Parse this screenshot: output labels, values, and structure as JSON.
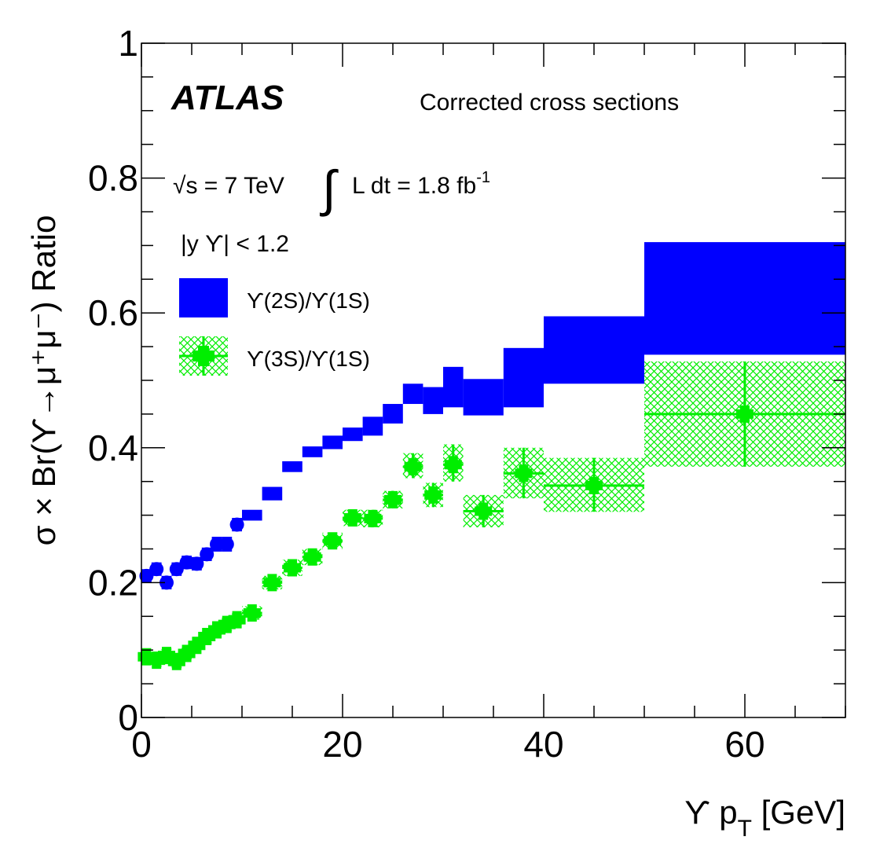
{
  "chart_data": {
    "type": "scatter",
    "experiment": "ATLAS",
    "caption": "Corrected cross sections",
    "energy_label": "√s = 7 TeV",
    "lumi_label": "L dt = 1.8 fb",
    "lumi_exponent": "-1",
    "rapidity_label": "|y ϒ| < 1.2",
    "xlabel": "ϒ p",
    "xlabel_sub": "T",
    "xlabel_unit": " [GeV]",
    "ylabel": "σ × Br(ϒ→μ⁺μ⁻) Ratio",
    "xlim": [
      0,
      70
    ],
    "ylim": [
      0,
      1
    ],
    "x_ticks": [
      0,
      20,
      40,
      60
    ],
    "y_ticks": [
      0,
      0.2,
      0.4,
      0.6,
      0.8,
      1
    ],
    "y_tick_labels": [
      "0",
      "0.2",
      "0.4",
      "0.6",
      "0.8",
      "1"
    ],
    "series": [
      {
        "name": "ϒ(2S)/ϒ(1S)",
        "color": "#0000ff",
        "style": "solid-box",
        "points": [
          {
            "x": 0.5,
            "xlo": 0,
            "xhi": 1,
            "y": 0.21,
            "ylo": 0.2,
            "yhi": 0.22
          },
          {
            "x": 1.5,
            "xlo": 1,
            "xhi": 2,
            "y": 0.22,
            "ylo": 0.21,
            "yhi": 0.23
          },
          {
            "x": 2.5,
            "xlo": 2,
            "xhi": 3,
            "y": 0.2,
            "ylo": 0.19,
            "yhi": 0.21
          },
          {
            "x": 3.5,
            "xlo": 3,
            "xhi": 4,
            "y": 0.22,
            "ylo": 0.21,
            "yhi": 0.23
          },
          {
            "x": 4.5,
            "xlo": 4,
            "xhi": 5,
            "y": 0.23,
            "ylo": 0.22,
            "yhi": 0.24
          },
          {
            "x": 5.5,
            "xlo": 5,
            "xhi": 6,
            "y": 0.228,
            "ylo": 0.218,
            "yhi": 0.238
          },
          {
            "x": 6.5,
            "xlo": 6,
            "xhi": 7,
            "y": 0.242,
            "ylo": 0.232,
            "yhi": 0.252
          },
          {
            "x": 7.5,
            "xlo": 7,
            "xhi": 8,
            "y": 0.257,
            "ylo": 0.246,
            "yhi": 0.268
          },
          {
            "x": 8.5,
            "xlo": 8,
            "xhi": 9,
            "y": 0.257,
            "ylo": 0.246,
            "yhi": 0.268
          },
          {
            "x": 9.5,
            "xlo": 9,
            "xhi": 10,
            "y": 0.286,
            "ylo": 0.276,
            "yhi": 0.296
          },
          {
            "x": 11,
            "xlo": 10,
            "xhi": 12,
            "y": 0.3,
            "ylo": 0.292,
            "yhi": 0.308
          },
          {
            "x": 13,
            "xlo": 12,
            "xhi": 14,
            "y": 0.332,
            "ylo": 0.322,
            "yhi": 0.342
          },
          {
            "x": 15,
            "xlo": 14,
            "xhi": 16,
            "y": 0.372,
            "ylo": 0.364,
            "yhi": 0.38
          },
          {
            "x": 17,
            "xlo": 16,
            "xhi": 18,
            "y": 0.394,
            "ylo": 0.386,
            "yhi": 0.402
          },
          {
            "x": 19,
            "xlo": 18,
            "xhi": 20,
            "y": 0.408,
            "ylo": 0.398,
            "yhi": 0.418
          },
          {
            "x": 21,
            "xlo": 20,
            "xhi": 22,
            "y": 0.42,
            "ylo": 0.41,
            "yhi": 0.43
          },
          {
            "x": 23,
            "xlo": 22,
            "xhi": 24,
            "y": 0.432,
            "ylo": 0.418,
            "yhi": 0.446
          },
          {
            "x": 25,
            "xlo": 24,
            "xhi": 26,
            "y": 0.45,
            "ylo": 0.436,
            "yhi": 0.465
          },
          {
            "x": 27,
            "xlo": 26,
            "xhi": 28,
            "y": 0.48,
            "ylo": 0.465,
            "yhi": 0.495
          },
          {
            "x": 29,
            "xlo": 28,
            "xhi": 30,
            "y": 0.47,
            "ylo": 0.45,
            "yhi": 0.49
          },
          {
            "x": 31,
            "xlo": 30,
            "xhi": 32,
            "y": 0.49,
            "ylo": 0.46,
            "yhi": 0.52
          },
          {
            "x": 34,
            "xlo": 32,
            "xhi": 36,
            "y": 0.475,
            "ylo": 0.448,
            "yhi": 0.502
          },
          {
            "x": 38,
            "xlo": 36,
            "xhi": 40,
            "y": 0.5,
            "ylo": 0.46,
            "yhi": 0.548
          },
          {
            "x": 45,
            "xlo": 40,
            "xhi": 50,
            "y": 0.545,
            "ylo": 0.495,
            "yhi": 0.595
          },
          {
            "x": 60,
            "xlo": 50,
            "xhi": 70,
            "y": 0.62,
            "ylo": 0.538,
            "yhi": 0.705
          }
        ]
      },
      {
        "name": "ϒ(3S)/ϒ(1S)",
        "color": "#00ee00",
        "style": "hatched-box",
        "points": [
          {
            "x": 0.5,
            "xlo": 0,
            "xhi": 1,
            "y": 0.09,
            "ylo": 0.08,
            "yhi": 0.1
          },
          {
            "x": 1.5,
            "xlo": 1,
            "xhi": 2,
            "y": 0.085,
            "ylo": 0.075,
            "yhi": 0.095
          },
          {
            "x": 2.5,
            "xlo": 2,
            "xhi": 3,
            "y": 0.092,
            "ylo": 0.082,
            "yhi": 0.102
          },
          {
            "x": 3.5,
            "xlo": 3,
            "xhi": 4,
            "y": 0.083,
            "ylo": 0.073,
            "yhi": 0.093
          },
          {
            "x": 4.5,
            "xlo": 4,
            "xhi": 5,
            "y": 0.095,
            "ylo": 0.085,
            "yhi": 0.105
          },
          {
            "x": 5.5,
            "xlo": 5,
            "xhi": 6,
            "y": 0.107,
            "ylo": 0.097,
            "yhi": 0.117
          },
          {
            "x": 6.5,
            "xlo": 6,
            "xhi": 7,
            "y": 0.12,
            "ylo": 0.11,
            "yhi": 0.13
          },
          {
            "x": 7.5,
            "xlo": 7,
            "xhi": 8,
            "y": 0.13,
            "ylo": 0.12,
            "yhi": 0.14
          },
          {
            "x": 8.5,
            "xlo": 8,
            "xhi": 9,
            "y": 0.138,
            "ylo": 0.128,
            "yhi": 0.148
          },
          {
            "x": 9.5,
            "xlo": 9,
            "xhi": 10,
            "y": 0.145,
            "ylo": 0.135,
            "yhi": 0.155
          },
          {
            "x": 11,
            "xlo": 10,
            "xhi": 12,
            "y": 0.155,
            "ylo": 0.145,
            "yhi": 0.165
          },
          {
            "x": 13,
            "xlo": 12,
            "xhi": 14,
            "y": 0.2,
            "ylo": 0.19,
            "yhi": 0.21
          },
          {
            "x": 15,
            "xlo": 14,
            "xhi": 16,
            "y": 0.222,
            "ylo": 0.21,
            "yhi": 0.234
          },
          {
            "x": 17,
            "xlo": 16,
            "xhi": 18,
            "y": 0.238,
            "ylo": 0.226,
            "yhi": 0.25
          },
          {
            "x": 19,
            "xlo": 18,
            "xhi": 20,
            "y": 0.262,
            "ylo": 0.25,
            "yhi": 0.274
          },
          {
            "x": 21,
            "xlo": 20,
            "xhi": 22,
            "y": 0.296,
            "ylo": 0.284,
            "yhi": 0.308
          },
          {
            "x": 23,
            "xlo": 22,
            "xhi": 24,
            "y": 0.295,
            "ylo": 0.282,
            "yhi": 0.308
          },
          {
            "x": 25,
            "xlo": 24,
            "xhi": 26,
            "y": 0.323,
            "ylo": 0.31,
            "yhi": 0.336
          },
          {
            "x": 27,
            "xlo": 26,
            "xhi": 28,
            "y": 0.372,
            "ylo": 0.355,
            "yhi": 0.392
          },
          {
            "x": 29,
            "xlo": 28,
            "xhi": 30,
            "y": 0.33,
            "ylo": 0.312,
            "yhi": 0.348
          },
          {
            "x": 31,
            "xlo": 30,
            "xhi": 32,
            "y": 0.375,
            "ylo": 0.35,
            "yhi": 0.405
          },
          {
            "x": 34,
            "xlo": 32,
            "xhi": 36,
            "y": 0.306,
            "ylo": 0.282,
            "yhi": 0.33
          },
          {
            "x": 38,
            "xlo": 36,
            "xhi": 40,
            "y": 0.362,
            "ylo": 0.325,
            "yhi": 0.4
          },
          {
            "x": 45,
            "xlo": 40,
            "xhi": 50,
            "y": 0.344,
            "ylo": 0.305,
            "yhi": 0.385
          },
          {
            "x": 60,
            "xlo": 50,
            "xhi": 70,
            "y": 0.45,
            "ylo": 0.372,
            "yhi": 0.528
          }
        ]
      }
    ]
  }
}
